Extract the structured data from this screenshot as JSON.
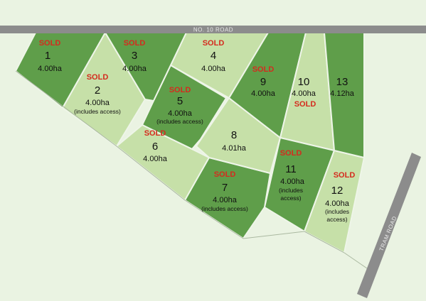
{
  "roads": {
    "no10": "NO. 10 ROAD",
    "tram": "TRAM ROAD"
  },
  "colors": {
    "background": "#eaf3e2",
    "road": "#8c8c8c",
    "lot_dark": "#5f9e4a",
    "lot_light": "#c6e0a8",
    "lot_outline": "#eef5e8",
    "sold": "#d52b1e"
  },
  "sold_label": "SOLD",
  "lots": {
    "l1": {
      "number": "1",
      "area": "4.00ha",
      "sold": true,
      "shade": "dark"
    },
    "l2": {
      "number": "2",
      "area": "4.00ha",
      "note1": "(includes access)",
      "sold": true,
      "shade": "light"
    },
    "l3": {
      "number": "3",
      "area": "4.00ha",
      "sold": true,
      "shade": "dark"
    },
    "l4": {
      "number": "4",
      "area": "4.00ha",
      "sold": true,
      "shade": "light"
    },
    "l5": {
      "number": "5",
      "area": "4.00ha",
      "note1": "(includes access)",
      "sold": true,
      "shade": "dark"
    },
    "l6": {
      "number": "6",
      "area": "4.00ha",
      "sold": true,
      "shade": "light"
    },
    "l7": {
      "number": "7",
      "area": "4.00ha",
      "note1": "(includes access)",
      "sold": true,
      "shade": "dark"
    },
    "l8": {
      "number": "8",
      "area": "4.01ha",
      "sold": false,
      "shade": "light"
    },
    "l9": {
      "number": "9",
      "area": "4.00ha",
      "sold": true,
      "shade": "dark"
    },
    "l10": {
      "number": "10",
      "area": "4.00ha",
      "sold": true,
      "shade": "light"
    },
    "l11": {
      "number": "11",
      "area": "4.00ha",
      "note1": "(includes",
      "note2": "access)",
      "sold": true,
      "shade": "dark"
    },
    "l12": {
      "number": "12",
      "area": "4.00ha",
      "note1": "(includes",
      "note2": "access)",
      "sold": true,
      "shade": "light"
    },
    "l13": {
      "number": "13",
      "area": "4.12ha",
      "sold": false,
      "shade": "dark"
    }
  }
}
